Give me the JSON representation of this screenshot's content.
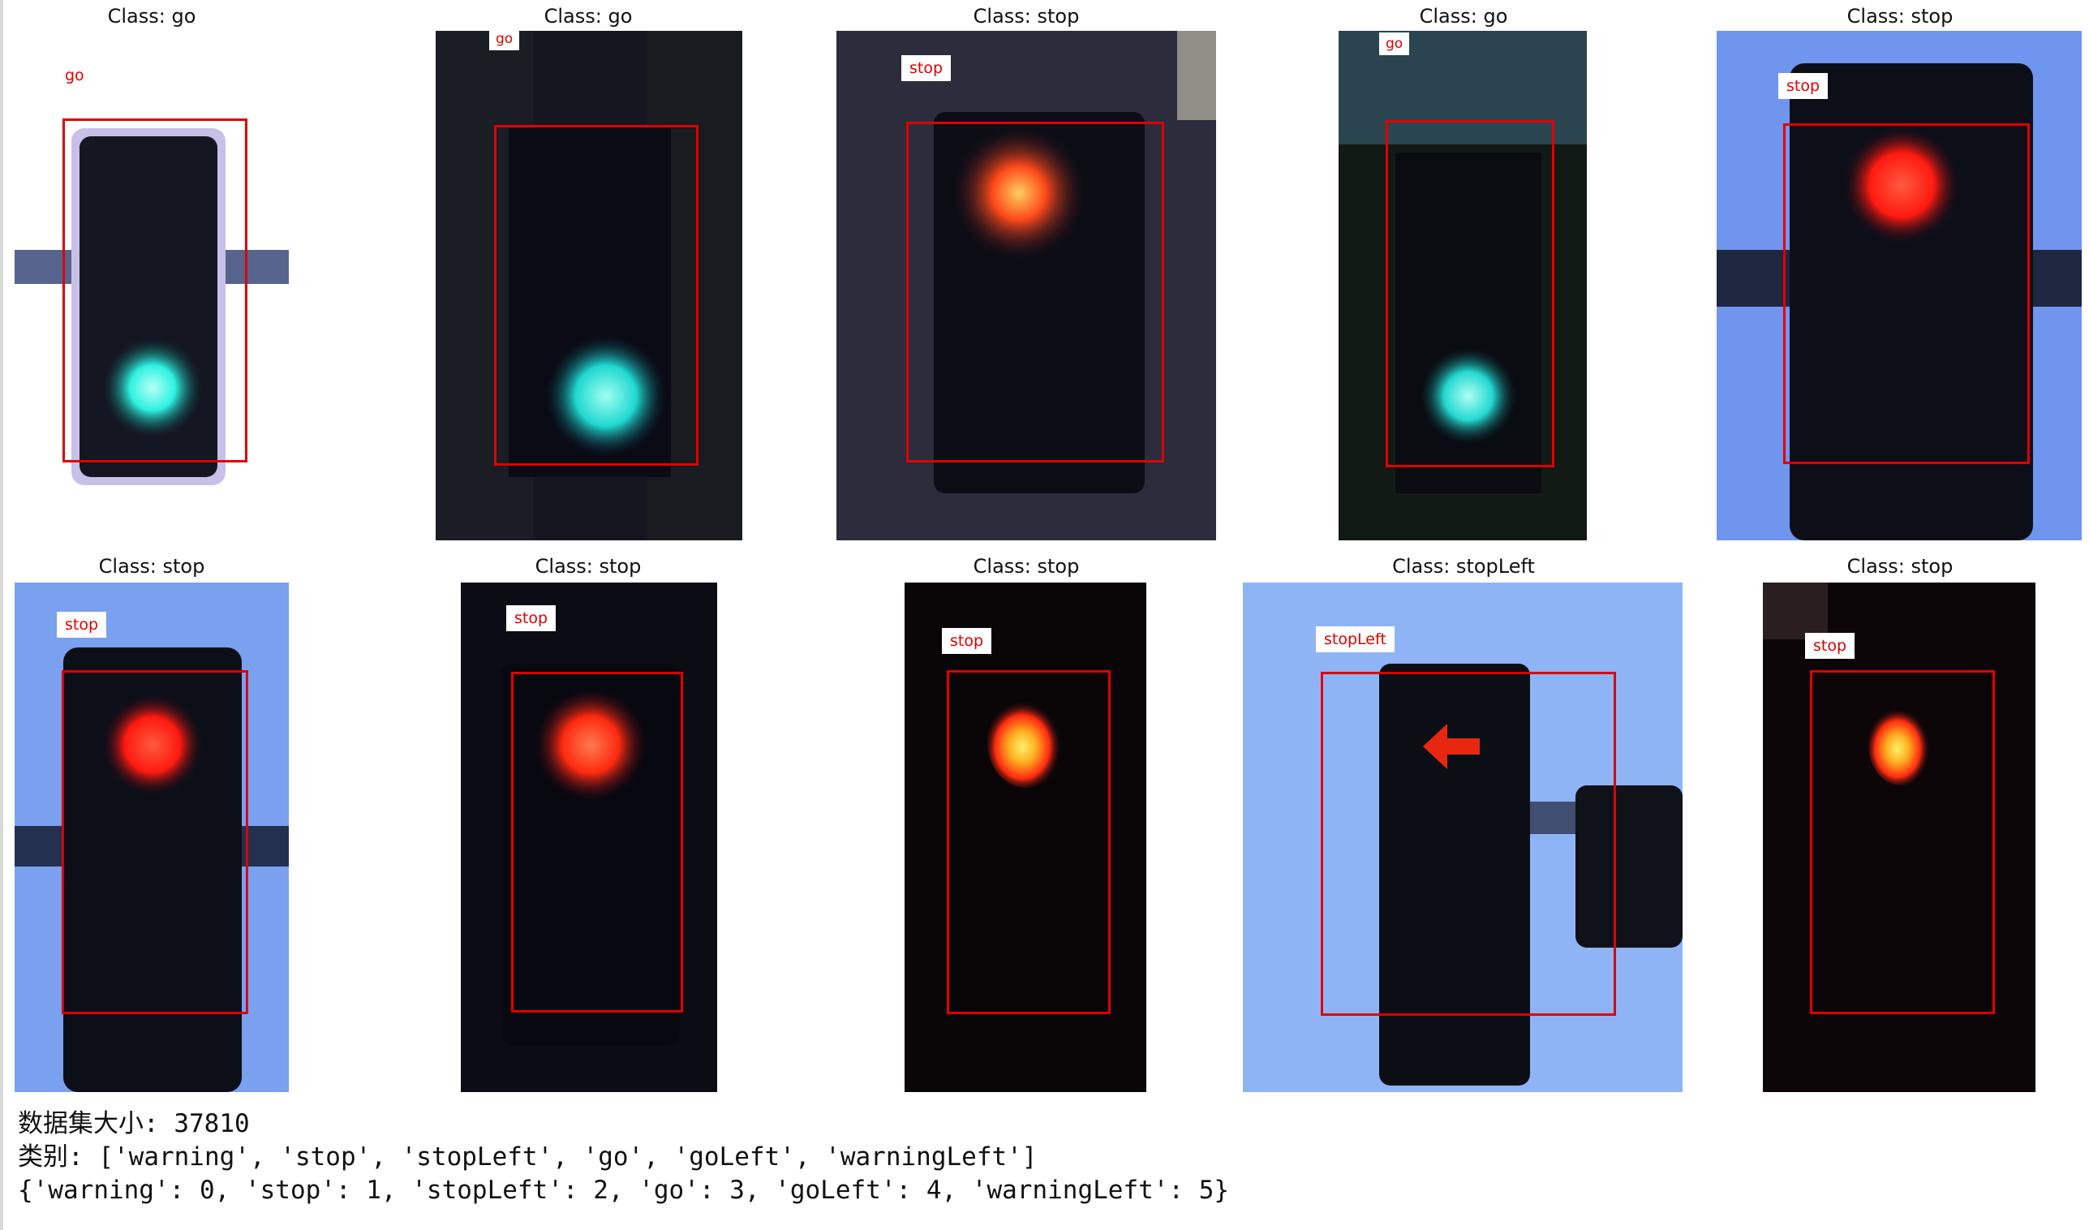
{
  "grid": {
    "panels": [
      {
        "title": "Class: go",
        "box_label": "go",
        "light": "green"
      },
      {
        "title": "Class: go",
        "box_label": "go",
        "light": "green"
      },
      {
        "title": "Class: stop",
        "box_label": "stop",
        "light": "red"
      },
      {
        "title": "Class: go",
        "box_label": "go",
        "light": "green"
      },
      {
        "title": "Class: stop",
        "box_label": "stop",
        "light": "red"
      },
      {
        "title": "Class: stop",
        "box_label": "stop",
        "light": "red"
      },
      {
        "title": "Class: stop",
        "box_label": "stop",
        "light": "red"
      },
      {
        "title": "Class: stop",
        "box_label": "stop",
        "light": "red"
      },
      {
        "title": "Class: stopLeft",
        "box_label": "stopLeft",
        "light": "red-arrow"
      },
      {
        "title": "Class: stop",
        "box_label": "stop",
        "light": "red"
      }
    ]
  },
  "output": {
    "line1": "数据集大小: 37810",
    "line2": "类别: ['warning', 'stop', 'stopLeft', 'go', 'goLeft', 'warningLeft']",
    "line3": "{'warning': 0, 'stop': 1, 'stopLeft': 2, 'go': 3, 'goLeft': 4, 'warningLeft': 5}"
  },
  "colors": {
    "box": "#e00000",
    "green_lamp": "#2ef2e2",
    "red_lamp": "#ff2a12",
    "sky": "#7aa0f0"
  }
}
